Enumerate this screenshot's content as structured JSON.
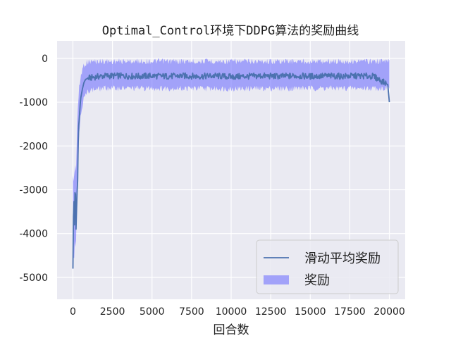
{
  "chart_data": {
    "type": "line",
    "title": "Optimal_Control环境下DDPG算法的奖励曲线",
    "xlabel": "回合数",
    "ylabel": "",
    "xlim": [
      -1000,
      21000
    ],
    "ylim": [
      -5500,
      400
    ],
    "xticks": [
      0,
      2500,
      5000,
      7500,
      10000,
      12500,
      15000,
      17500,
      20000
    ],
    "yticks": [
      0,
      -1000,
      -2000,
      -3000,
      -4000,
      -5000
    ],
    "grid": true,
    "legend": "lower-right",
    "series": [
      {
        "name": "滑动平均奖励",
        "style": "line",
        "color": "#4c72b0",
        "x": [
          0,
          50,
          100,
          150,
          200,
          250,
          300,
          350,
          400,
          450,
          500,
          600,
          700,
          800,
          1000,
          1500,
          2000,
          3000,
          4000,
          5000,
          6000,
          7000,
          8000,
          9000,
          10000,
          11000,
          12000,
          13000,
          14000,
          15000,
          16000,
          17000,
          18000,
          19000,
          19900,
          20000
        ],
        "values": [
          -4800,
          -3000,
          -3800,
          -2700,
          -3900,
          -3200,
          -2800,
          -1600,
          -1400,
          -1100,
          -900,
          -700,
          -550,
          -480,
          -450,
          -420,
          -400,
          -400,
          -410,
          -400,
          -410,
          -400,
          -410,
          -400,
          -420,
          -410,
          -400,
          -410,
          -400,
          -410,
          -400,
          -410,
          -400,
          -410,
          -600,
          -1000
        ]
      },
      {
        "name": "奖励",
        "style": "band",
        "color": "#6666ff",
        "x": [
          0,
          100,
          200,
          300,
          400,
          500,
          700,
          1000,
          2000,
          5000,
          10000,
          15000,
          20000
        ],
        "upper": [
          -2600,
          -2400,
          -2300,
          -1000,
          -600,
          -300,
          -50,
          0,
          0,
          0,
          0,
          0,
          0
        ],
        "lower": [
          -4800,
          -4500,
          -4200,
          -3000,
          -1800,
          -1300,
          -1000,
          -800,
          -750,
          -750,
          -760,
          -750,
          -750
        ]
      }
    ]
  }
}
